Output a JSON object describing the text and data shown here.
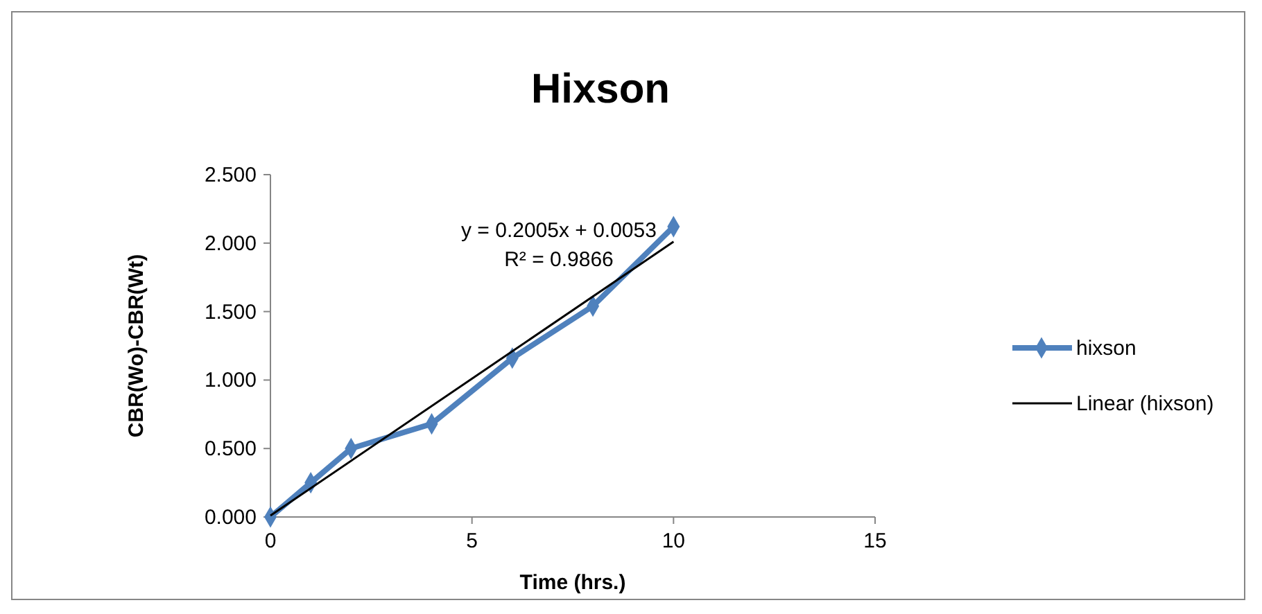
{
  "chart_data": {
    "type": "line",
    "title": "Hixson",
    "xlabel": "Time (hrs.)",
    "ylabel": "CBR(Wo)-CBR(Wt)",
    "xlim": [
      0,
      15
    ],
    "xticks": [
      0,
      5,
      10,
      15
    ],
    "ylim": [
      0,
      2.5
    ],
    "yticks": [
      {
        "value": 0,
        "label": "0.000"
      },
      {
        "value": 0.5,
        "label": "0.500"
      },
      {
        "value": 1,
        "label": "1.000"
      },
      {
        "value": 1.5,
        "label": "1.500"
      },
      {
        "value": 2,
        "label": "2.000"
      },
      {
        "value": 2.5,
        "label": "2.500"
      }
    ],
    "series": [
      {
        "name": "hixson",
        "color": "#4f81bd",
        "x": [
          0,
          1,
          2,
          4,
          6,
          8,
          10
        ],
        "values": [
          0,
          0.25,
          0.5,
          0.68,
          1.16,
          1.54,
          2.12
        ],
        "marker": "diamond"
      },
      {
        "name": "Linear (hixson)",
        "type": "line",
        "color": "#000000",
        "x": [
          0,
          10
        ],
        "values": [
          0.01,
          2.01
        ],
        "marker": "none"
      }
    ],
    "annotations": [
      "y = 0.2005x + 0.0053",
      "R² = 0.9866"
    ],
    "legend": "right",
    "grid": false
  }
}
